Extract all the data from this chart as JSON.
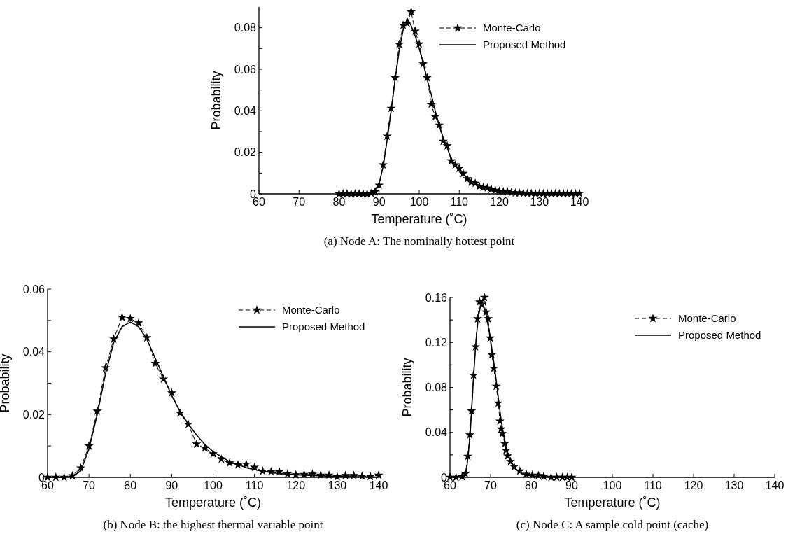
{
  "chart_data": [
    {
      "type": "line",
      "title": "(a) Node A: The nominally hottest point",
      "xlabel": "Temperature (˚C)",
      "ylabel": "Probability",
      "xlim": [
        60,
        140
      ],
      "xticks": [
        60,
        70,
        80,
        90,
        100,
        110,
        120,
        130,
        140
      ],
      "ylim": [
        0,
        0.09
      ],
      "yticks": [
        0,
        {
          "value": 0.01,
          "label": null
        },
        0.02,
        {
          "value": 0.03,
          "label": null
        },
        0.04,
        {
          "value": 0.05,
          "label": null
        },
        0.06,
        {
          "value": 0.07,
          "label": null
        },
        0.08
      ],
      "legend": "top right",
      "grid": false,
      "series": [
        {
          "name": "Monte-Carlo",
          "color": "#000000",
          "line_style": "dashed",
          "marker": "star",
          "x": [
            80,
            81,
            82,
            83,
            84,
            85,
            86,
            87,
            88,
            89,
            90,
            91,
            92,
            93,
            94,
            95,
            96,
            97,
            98,
            99,
            100,
            101,
            102,
            103,
            104,
            105,
            106,
            107,
            108,
            109,
            110,
            111,
            112,
            113,
            114,
            115,
            116,
            117,
            118,
            119,
            120,
            121,
            122,
            123,
            124,
            125,
            126,
            127,
            128,
            129,
            130,
            131,
            132,
            133,
            134,
            135,
            136,
            137,
            138,
            139,
            140
          ],
          "values": [
            0,
            0,
            0,
            0,
            0,
            0,
            0,
            0,
            0.0003,
            0.001,
            0.0042,
            0.0139,
            0.0278,
            0.0412,
            0.0559,
            0.072,
            0.0812,
            0.0822,
            0.0876,
            0.0783,
            0.0722,
            0.0626,
            0.0559,
            0.0431,
            0.0372,
            0.0331,
            0.0253,
            0.0231,
            0.0159,
            0.0139,
            0.0123,
            0.0098,
            0.0073,
            0.0056,
            0.0051,
            0.0037,
            0.0031,
            0.0028,
            0.0022,
            0.0017,
            0.0013,
            0.001,
            0.0012,
            0.0006,
            0.0004,
            0.0005,
            0.0003,
            0.0002,
            0.0002,
            0.0001,
            0.0002,
            0.0001,
            0.0001,
            0.0001,
            0.0001,
            0.0001,
            0.0001,
            0.0001,
            0.0001,
            0.0001,
            0.0002
          ]
        },
        {
          "name": "Proposed Method",
          "color": "#000000",
          "line_style": "solid",
          "marker": "none",
          "x": [
            80,
            86,
            88,
            89,
            90,
            91,
            92,
            93,
            94,
            95,
            96,
            97,
            98,
            99,
            100,
            101,
            102,
            103,
            104,
            105,
            106,
            107,
            108,
            109,
            110,
            112,
            114,
            116,
            118,
            120,
            125,
            130,
            140
          ],
          "values": [
            0,
            0,
            0.0005,
            0.002,
            0.005,
            0.013,
            0.026,
            0.04,
            0.055,
            0.069,
            0.079,
            0.0845,
            0.081,
            0.076,
            0.07,
            0.063,
            0.055,
            0.048,
            0.04,
            0.033,
            0.027,
            0.022,
            0.017,
            0.014,
            0.011,
            0.0075,
            0.005,
            0.0032,
            0.002,
            0.0012,
            0.0004,
            0.0001,
            0
          ]
        }
      ]
    },
    {
      "type": "line",
      "title": "(b) Node B: the highest thermal variable point",
      "xlabel": "Temperature (˚C)",
      "ylabel": "Probability",
      "xlim": [
        60,
        140
      ],
      "xticks": [
        60,
        70,
        80,
        90,
        100,
        110,
        120,
        130,
        140
      ],
      "ylim": [
        0,
        0.06
      ],
      "yticks": [
        0,
        {
          "value": 0.01,
          "label": null
        },
        0.02,
        {
          "value": 0.03,
          "label": null
        },
        0.04,
        {
          "value": 0.05,
          "label": null
        },
        0.06
      ],
      "legend": "top right",
      "grid": false,
      "series": [
        {
          "name": "Monte-Carlo",
          "color": "#000000",
          "line_style": "dashed",
          "marker": "star",
          "x": [
            60,
            62,
            64,
            66,
            68,
            70,
            72,
            74,
            76,
            78,
            80,
            82,
            84,
            86,
            88,
            90,
            92,
            94,
            96,
            98,
            100,
            102,
            104,
            106,
            108,
            110,
            112,
            114,
            116,
            118,
            120,
            122,
            124,
            126,
            128,
            130,
            132,
            134,
            136,
            138,
            140
          ],
          "values": [
            0,
            0,
            0,
            0.0005,
            0.003,
            0.01,
            0.0211,
            0.0349,
            0.0441,
            0.051,
            0.0506,
            0.0492,
            0.0445,
            0.0363,
            0.0313,
            0.0269,
            0.0205,
            0.0169,
            0.0106,
            0.0093,
            0.0075,
            0.0058,
            0.0046,
            0.004,
            0.0042,
            0.0032,
            0.002,
            0.0018,
            0.0018,
            0.0011,
            0.0008,
            0.0009,
            0.001,
            0.0007,
            0.0007,
            0.0002,
            0.0006,
            0.0006,
            0.0004,
            0.0003,
            0.0007
          ]
        },
        {
          "name": "Proposed Method",
          "color": "#000000",
          "line_style": "solid",
          "marker": "none",
          "x": [
            60,
            64,
            66,
            68,
            70,
            72,
            74,
            76,
            78,
            80,
            82,
            84,
            86,
            88,
            90,
            92,
            94,
            96,
            98,
            100,
            104,
            108,
            112,
            116,
            120,
            130,
            140
          ],
          "values": [
            0,
            0,
            0.0003,
            0.002,
            0.009,
            0.02,
            0.033,
            0.043,
            0.048,
            0.0495,
            0.048,
            0.044,
            0.038,
            0.032,
            0.026,
            0.021,
            0.017,
            0.0135,
            0.0105,
            0.0082,
            0.005,
            0.0031,
            0.0019,
            0.0012,
            0.0008,
            0.0003,
            0.0001
          ]
        }
      ]
    },
    {
      "type": "line",
      "title": "(c) Node C: A sample cold point (cache)",
      "xlabel": "Temperature (˚C)",
      "ylabel": "Probability",
      "xlim": [
        60,
        140
      ],
      "xticks": [
        60,
        70,
        80,
        90,
        100,
        110,
        120,
        130,
        140
      ],
      "ylim": [
        0,
        0.16
      ],
      "yticks": [
        0,
        {
          "value": 0.02,
          "label": null
        },
        0.04,
        {
          "value": 0.06,
          "label": null
        },
        0.08,
        {
          "value": 0.1,
          "label": null
        },
        0.12,
        {
          "value": 0.14,
          "label": null
        },
        0.16
      ],
      "legend": "top right",
      "grid": false,
      "series": [
        {
          "name": "Monte-Carlo",
          "color": "#000000",
          "line_style": "dashed",
          "marker": "star",
          "x": [
            60,
            61.5,
            63,
            63.8,
            64.4,
            64.9,
            65.3,
            65.8,
            66.3,
            66.8,
            67.3,
            67.9,
            68.5,
            68.9,
            69.4,
            69.9,
            70.3,
            70.8,
            71.4,
            71.9,
            72.3,
            72.6,
            72.9,
            73.5,
            73.8,
            74.2,
            74.9,
            75.8,
            77.2,
            78.8,
            80.3,
            81.8,
            83.1,
            84.9,
            86.3,
            87.7,
            88.9,
            90
          ],
          "values": [
            0,
            0,
            0.0005,
            0.0034,
            0.0187,
            0.0378,
            0.059,
            0.0908,
            0.116,
            0.141,
            0.156,
            0.154,
            0.16,
            0.147,
            0.141,
            0.124,
            0.109,
            0.097,
            0.081,
            0.066,
            0.05,
            0.043,
            0.039,
            0.03,
            0.024,
            0.019,
            0.014,
            0.0095,
            0.0056,
            0.0027,
            0.002,
            0.0016,
            0.0009,
            0,
            0,
            0,
            0,
            0
          ]
        },
        {
          "name": "Proposed Method",
          "color": "#000000",
          "line_style": "solid",
          "marker": "none",
          "x": [
            60,
            63,
            64,
            64.5,
            65,
            65.5,
            66,
            66.5,
            67,
            67.5,
            68,
            68.5,
            69,
            69.5,
            70,
            70.5,
            71,
            71.5,
            72,
            72.5,
            73,
            73.5,
            74,
            75,
            76,
            77,
            78,
            80,
            82,
            85,
            90
          ],
          "values": [
            0,
            0.0005,
            0.004,
            0.02,
            0.04,
            0.07,
            0.1,
            0.125,
            0.143,
            0.152,
            0.153,
            0.15,
            0.143,
            0.133,
            0.122,
            0.11,
            0.097,
            0.083,
            0.068,
            0.054,
            0.042,
            0.032,
            0.024,
            0.014,
            0.008,
            0.005,
            0.003,
            0.0012,
            0.0005,
            0.0001,
            0
          ]
        }
      ]
    }
  ]
}
